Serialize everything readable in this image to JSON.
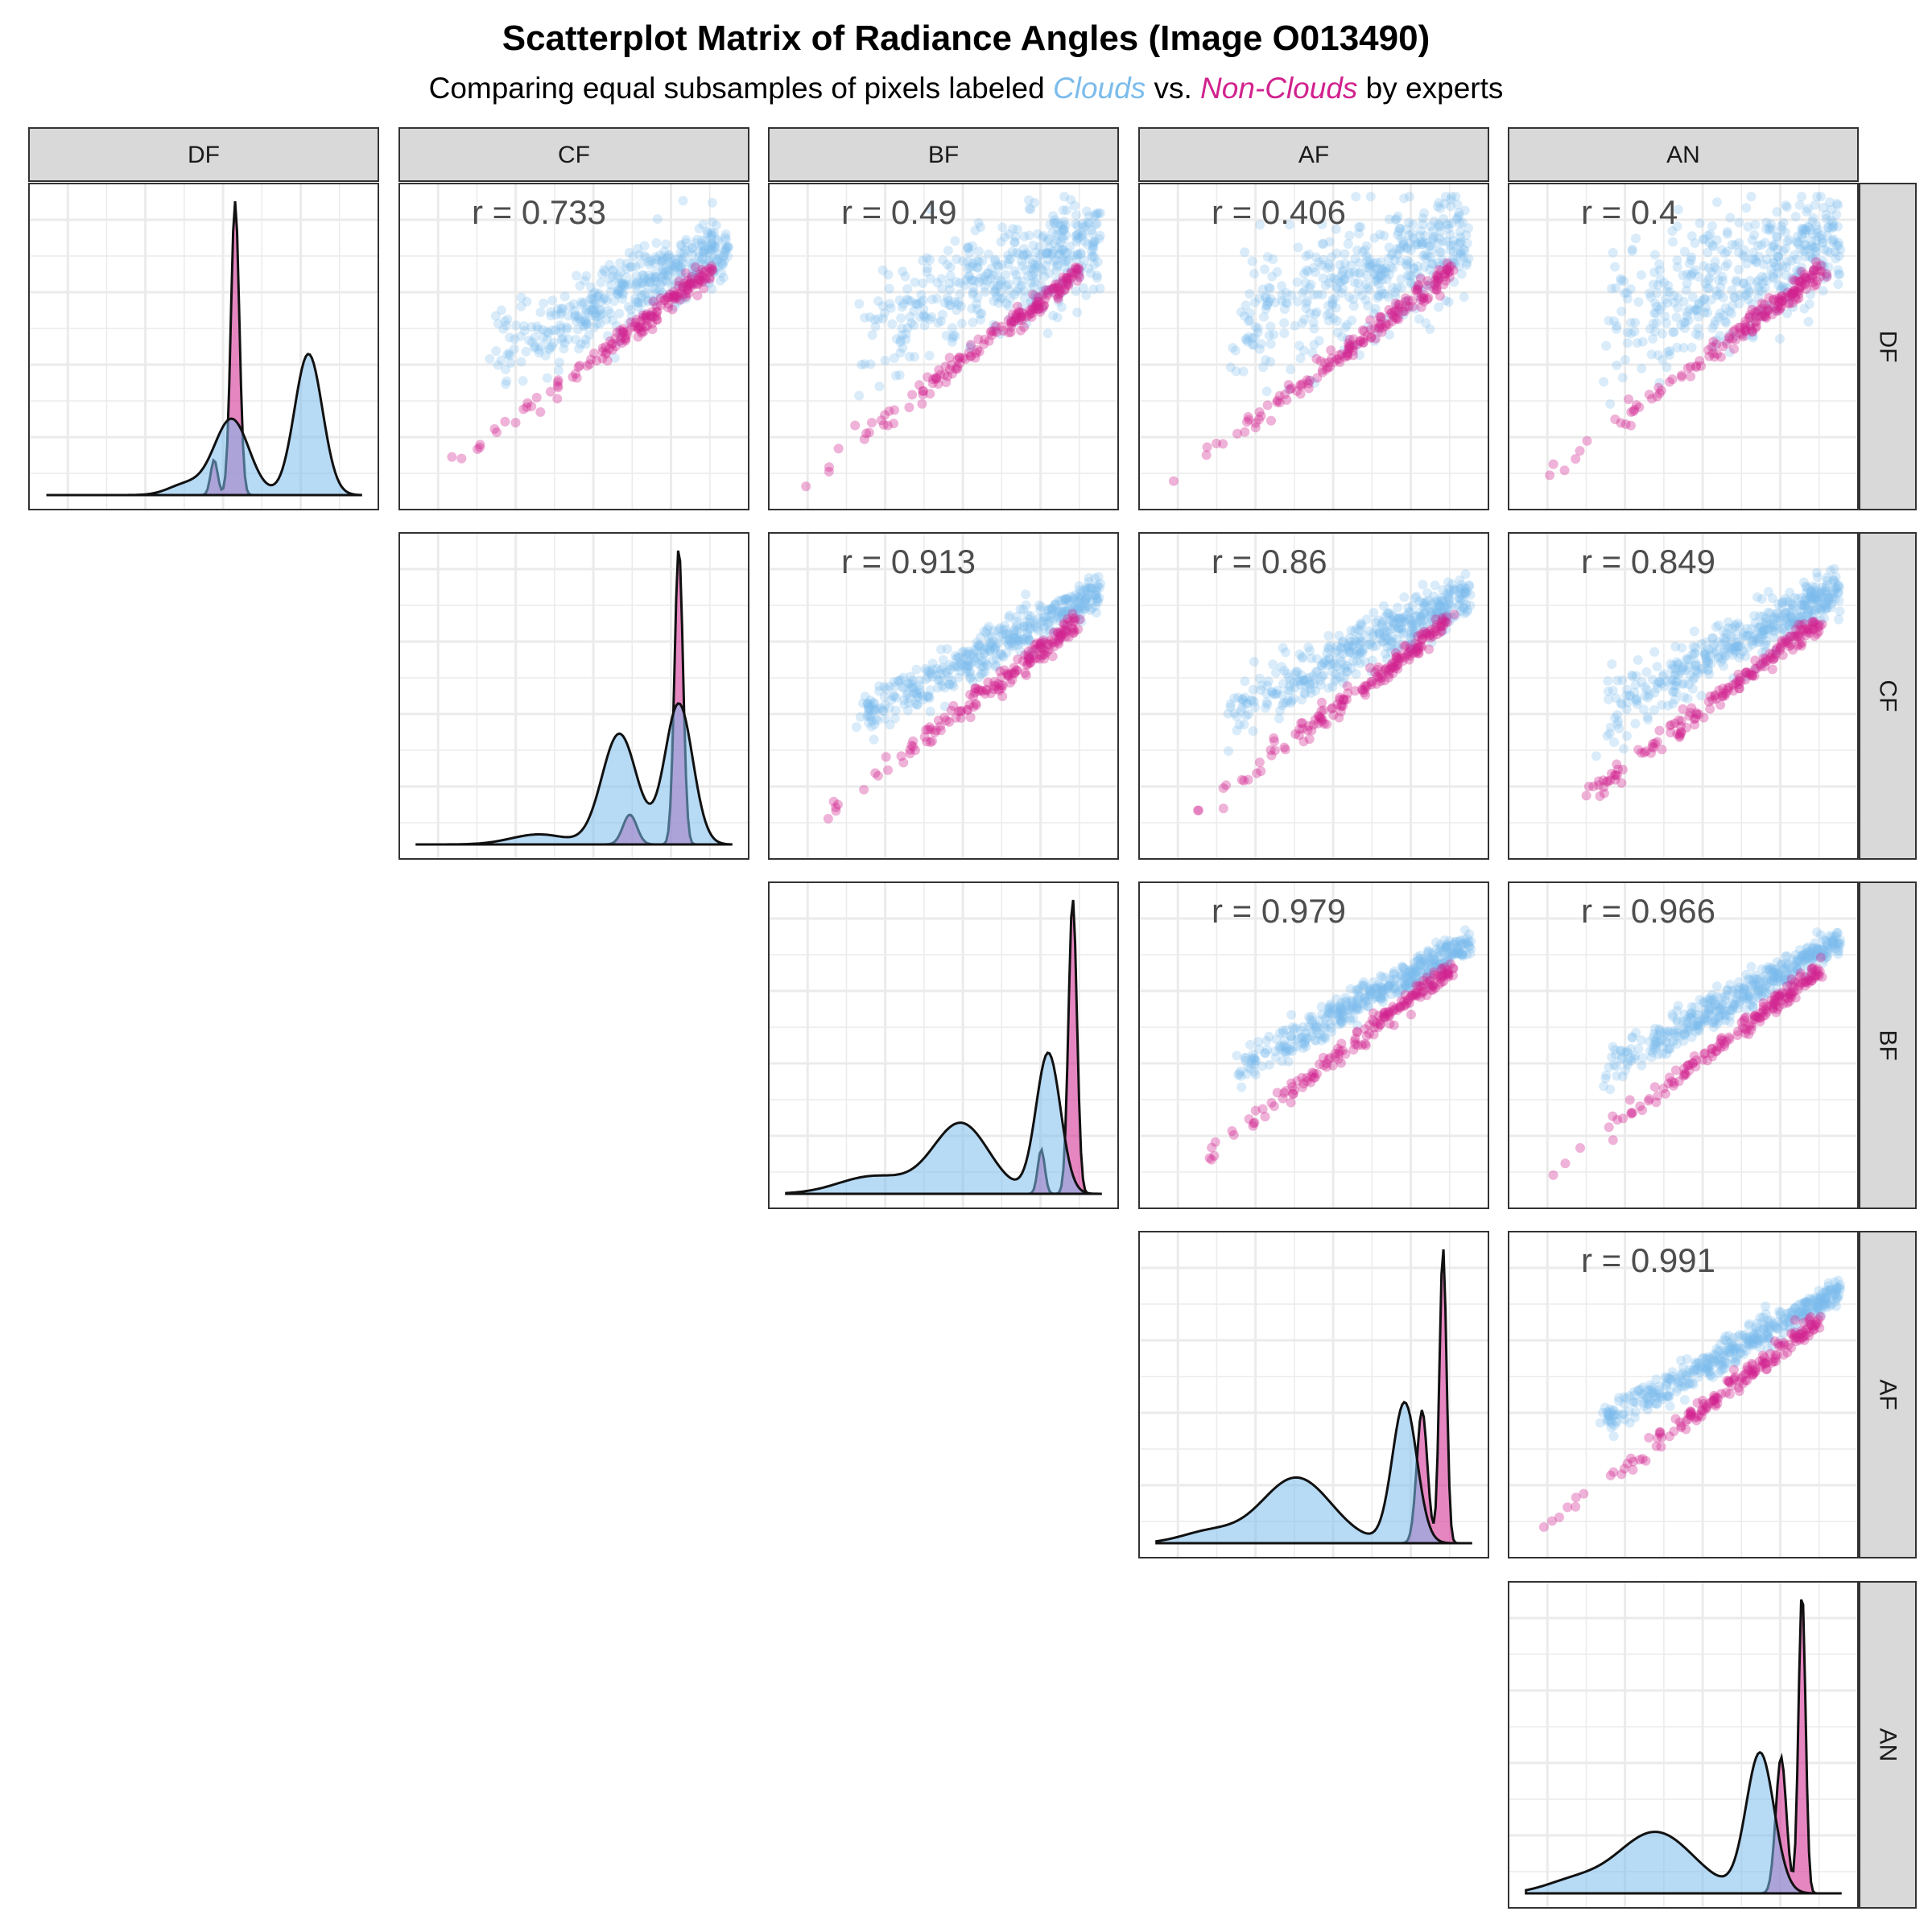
{
  "title": "Scatterplot Matrix of Radiance Angles (Image O013490)",
  "subtitle": {
    "prefix": "Comparing equal subsamples of pixels labeled ",
    "clouds": "Clouds",
    "middle": " vs. ",
    "non_clouds": "Non-Clouds",
    "suffix": " by experts"
  },
  "colors": {
    "clouds": "#7bbcec",
    "non_clouds": "#d1228e",
    "density_overlap": "#a48fd4",
    "strip_bg": "#d9d9d9",
    "grid": "#ebebeb",
    "panel_border": "#333333"
  },
  "chart_data": {
    "type": "scatter",
    "variables": [
      "DF",
      "CF",
      "BF",
      "AF",
      "AN"
    ],
    "series": [
      {
        "name": "Clouds",
        "color": "#7bbcec"
      },
      {
        "name": "Non-Clouds",
        "color": "#d1228e"
      }
    ],
    "grid": true,
    "correlations": [
      {
        "row": "DF",
        "col": "CF",
        "label": "r = 0.733"
      },
      {
        "row": "DF",
        "col": "BF",
        "label": "r = 0.49"
      },
      {
        "row": "DF",
        "col": "AF",
        "label": "r = 0.406"
      },
      {
        "row": "DF",
        "col": "AN",
        "label": "r = 0.4"
      },
      {
        "row": "CF",
        "col": "BF",
        "label": "r = 0.913"
      },
      {
        "row": "CF",
        "col": "AF",
        "label": "r = 0.86"
      },
      {
        "row": "CF",
        "col": "AN",
        "label": "r = 0.849"
      },
      {
        "row": "BF",
        "col": "AF",
        "label": "r = 0.979"
      },
      {
        "row": "BF",
        "col": "AN",
        "label": "r = 0.966"
      },
      {
        "row": "AF",
        "col": "AN",
        "label": "r = 0.991"
      }
    ]
  }
}
